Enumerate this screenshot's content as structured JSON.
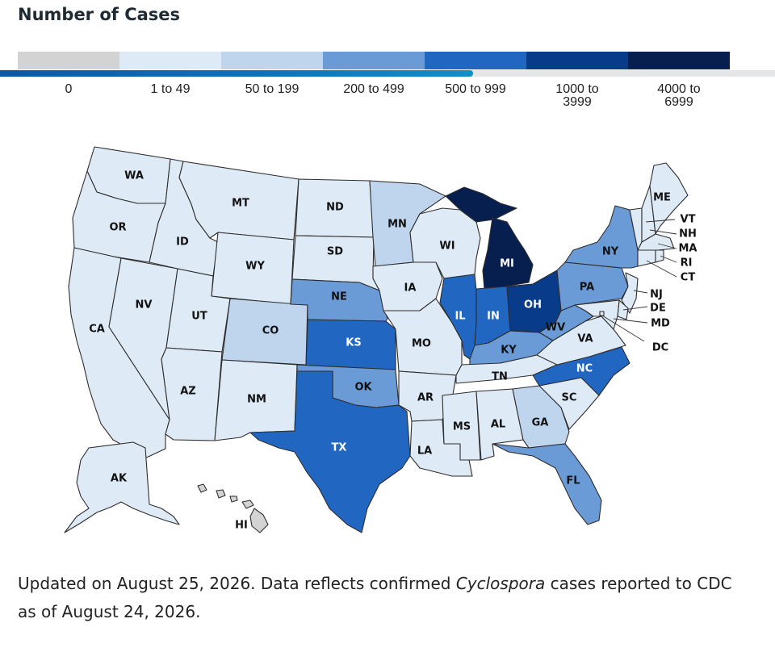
{
  "title": "Number of Cases",
  "legend": [
    {
      "label": "0",
      "color": "#d3d3d3"
    },
    {
      "label": "1 to 49",
      "color": "#deebf7"
    },
    {
      "label": "50 to 199",
      "color": "#bfd5ee"
    },
    {
      "label": "200 to 499",
      "color": "#6b9bd6"
    },
    {
      "label": "500 to 999",
      "color": "#2166c1"
    },
    {
      "label": "1000 to\n3999",
      "color": "#083c8a"
    },
    {
      "label": "4000 to\n6999",
      "color": "#061f4e"
    }
  ],
  "progress": 0.61,
  "states": [
    {
      "code": "WA",
      "bin": 1
    },
    {
      "code": "OR",
      "bin": 1
    },
    {
      "code": "CA",
      "bin": 1
    },
    {
      "code": "NV",
      "bin": 1
    },
    {
      "code": "ID",
      "bin": 1
    },
    {
      "code": "MT",
      "bin": 1
    },
    {
      "code": "WY",
      "bin": 1
    },
    {
      "code": "UT",
      "bin": 1
    },
    {
      "code": "AZ",
      "bin": 1
    },
    {
      "code": "CO",
      "bin": 2
    },
    {
      "code": "NM",
      "bin": 1
    },
    {
      "code": "ND",
      "bin": 1
    },
    {
      "code": "SD",
      "bin": 1
    },
    {
      "code": "NE",
      "bin": 3
    },
    {
      "code": "KS",
      "bin": 4
    },
    {
      "code": "OK",
      "bin": 3
    },
    {
      "code": "TX",
      "bin": 4
    },
    {
      "code": "MN",
      "bin": 2
    },
    {
      "code": "IA",
      "bin": 1
    },
    {
      "code": "MO",
      "bin": 1
    },
    {
      "code": "AR",
      "bin": 1
    },
    {
      "code": "LA",
      "bin": 1
    },
    {
      "code": "WI",
      "bin": 1
    },
    {
      "code": "IL",
      "bin": 4
    },
    {
      "code": "MI",
      "bin": 6
    },
    {
      "code": "IN",
      "bin": 4
    },
    {
      "code": "OH",
      "bin": 5
    },
    {
      "code": "KY",
      "bin": 3
    },
    {
      "code": "TN",
      "bin": 1
    },
    {
      "code": "MS",
      "bin": 1
    },
    {
      "code": "AL",
      "bin": 1
    },
    {
      "code": "GA",
      "bin": 2
    },
    {
      "code": "FL",
      "bin": 3
    },
    {
      "code": "SC",
      "bin": 1
    },
    {
      "code": "NC",
      "bin": 4
    },
    {
      "code": "VA",
      "bin": 1
    },
    {
      "code": "WV",
      "bin": 3
    },
    {
      "code": "PA",
      "bin": 3
    },
    {
      "code": "NY",
      "bin": 3
    },
    {
      "code": "VT",
      "bin": 1
    },
    {
      "code": "NH",
      "bin": 1
    },
    {
      "code": "ME",
      "bin": 1
    },
    {
      "code": "MA",
      "bin": 1
    },
    {
      "code": "RI",
      "bin": 1
    },
    {
      "code": "CT",
      "bin": 1
    },
    {
      "code": "NJ",
      "bin": 1
    },
    {
      "code": "DE",
      "bin": 1
    },
    {
      "code": "MD",
      "bin": 1
    },
    {
      "code": "DC",
      "bin": 1
    },
    {
      "code": "AK",
      "bin": 1
    },
    {
      "code": "HI",
      "bin": 0
    }
  ],
  "footnote": {
    "part1": "Updated on August 25, 2026. Data reflects confirmed ",
    "italic": "Cyclospora",
    "part2": " cases reported to CDC as of August 24, 2026."
  }
}
